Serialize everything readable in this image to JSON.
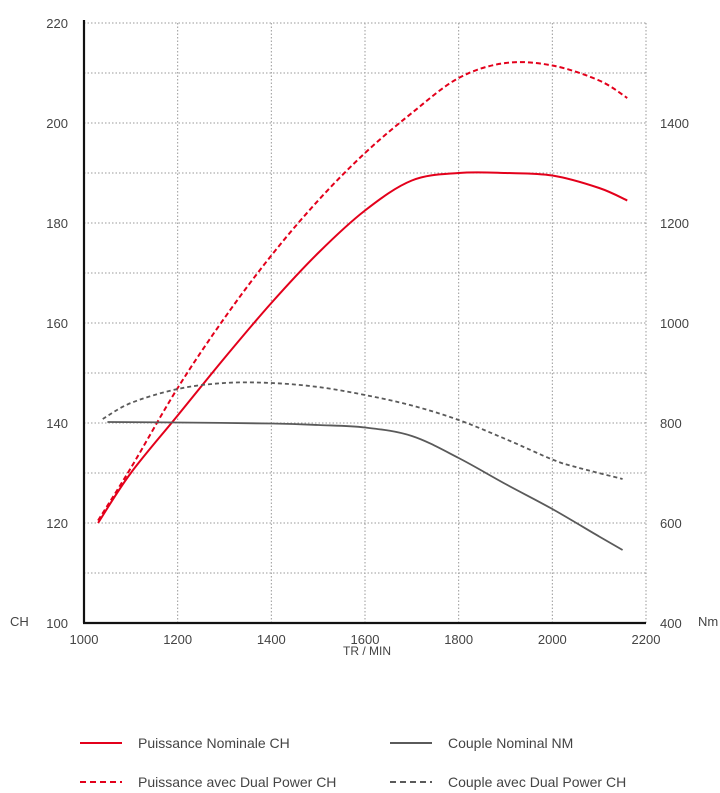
{
  "chart_data": {
    "type": "line",
    "title": "",
    "xlabel": "TR / MIN",
    "ylabel_left": "CH",
    "ylabel_right": "Nm",
    "xlim": [
      1000,
      2200
    ],
    "ylim_left": [
      100,
      220
    ],
    "ylim_right": [
      400,
      1600
    ],
    "x_ticks": [
      "1000",
      "1200",
      "1400",
      "1600",
      "1800",
      "2000",
      "2200"
    ],
    "y_left_ticks": [
      "100",
      "120",
      "140",
      "160",
      "180",
      "200",
      "220"
    ],
    "y_right_ticks": [
      "400",
      "600",
      "800",
      "1000",
      "1200",
      "1400"
    ],
    "grid": true,
    "legend_position": "bottom",
    "series": [
      {
        "name": "Puissance Nominale CH",
        "axis": "left",
        "color": "#e3001b",
        "style": "solid",
        "x": [
          1030,
          1100,
          1200,
          1300,
          1400,
          1500,
          1600,
          1700,
          1800,
          1900,
          2000,
          2100,
          2160
        ],
        "y": [
          120,
          130,
          141.5,
          153,
          164,
          174,
          182.5,
          188.5,
          190,
          190,
          189.5,
          187,
          184.5
        ]
      },
      {
        "name": "Puissance  avec Dual Power  CH",
        "axis": "left",
        "color": "#e3001b",
        "style": "dashed",
        "x": [
          1030,
          1100,
          1200,
          1300,
          1400,
          1500,
          1600,
          1700,
          1800,
          1900,
          2000,
          2100,
          2160
        ],
        "y": [
          120.5,
          131,
          147,
          161,
          173.5,
          184.5,
          194,
          202,
          209,
          212,
          211.5,
          208.5,
          205
        ]
      },
      {
        "name": "Couple Nominal NM",
        "axis": "right",
        "color": "#5a5a5a",
        "style": "solid",
        "x": [
          1050,
          1200,
          1400,
          1500,
          1600,
          1700,
          1800,
          1900,
          2000,
          2100,
          2150
        ],
        "y": [
          802,
          801,
          799,
          796,
          791,
          774,
          730,
          678,
          628,
          573,
          546
        ]
      },
      {
        "name": "Couple avec Dual Power CH",
        "axis": "right",
        "color": "#5a5a5a",
        "style": "dashed",
        "x": [
          1040,
          1100,
          1200,
          1300,
          1400,
          1500,
          1600,
          1700,
          1800,
          1900,
          2000,
          2050,
          2150
        ],
        "y": [
          808,
          840,
          868,
          880,
          880,
          872,
          856,
          835,
          806,
          768,
          727,
          712,
          688
        ]
      }
    ]
  }
}
